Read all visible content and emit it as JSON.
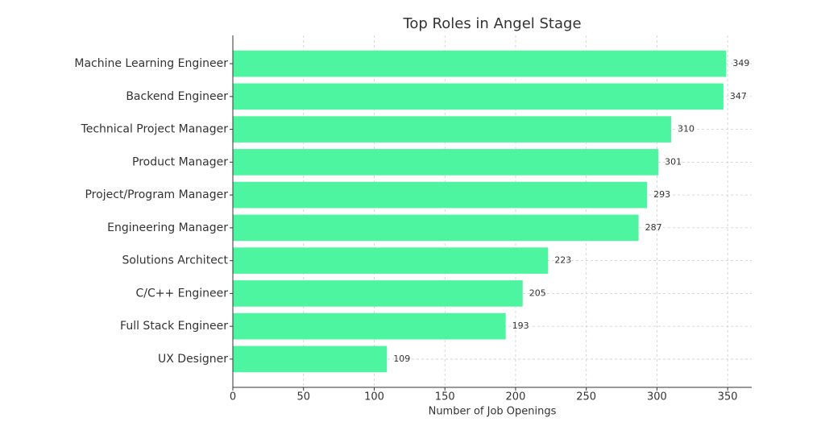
{
  "chart_data": {
    "type": "barh",
    "title": "Top Roles in Angel Stage",
    "xlabel": "Number of Job Openings",
    "categories": [
      "Machine Learning Engineer",
      "Backend Engineer",
      "Technical Project Manager",
      "Product Manager",
      "Project/Program Manager",
      "Engineering Manager",
      "Solutions Architect",
      "C/C++ Engineer",
      "Full Stack Engineer",
      "UX Designer"
    ],
    "values": [
      349,
      347,
      310,
      301,
      293,
      287,
      223,
      205,
      193,
      109
    ],
    "color": "#4ef5a0",
    "xlim": [
      0,
      367
    ],
    "xticks": [
      0,
      50,
      100,
      150,
      200,
      250,
      300,
      350
    ],
    "grid": true
  }
}
